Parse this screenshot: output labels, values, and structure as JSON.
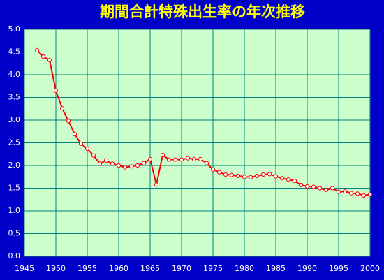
{
  "chart_data": {
    "type": "line",
    "title": "期間合計特殊出生率の年次推移",
    "x": [
      1947,
      1948,
      1949,
      1950,
      1951,
      1952,
      1953,
      1954,
      1955,
      1956,
      1957,
      1958,
      1959,
      1960,
      1961,
      1962,
      1963,
      1964,
      1965,
      1966,
      1967,
      1968,
      1969,
      1970,
      1971,
      1972,
      1973,
      1974,
      1975,
      1976,
      1977,
      1978,
      1979,
      1980,
      1981,
      1982,
      1983,
      1984,
      1985,
      1986,
      1987,
      1988,
      1989,
      1990,
      1991,
      1992,
      1993,
      1994,
      1995,
      1996,
      1997,
      1998,
      1999,
      2000
    ],
    "series": [
      {
        "color": "#ff0000",
        "values": [
          4.54,
          4.4,
          4.32,
          3.65,
          3.26,
          2.98,
          2.69,
          2.48,
          2.37,
          2.22,
          2.04,
          2.11,
          2.04,
          2.0,
          1.96,
          1.98,
          2.0,
          2.05,
          2.14,
          1.58,
          2.23,
          2.13,
          2.13,
          2.13,
          2.16,
          2.14,
          2.14,
          2.05,
          1.91,
          1.85,
          1.8,
          1.79,
          1.77,
          1.75,
          1.74,
          1.77,
          1.8,
          1.81,
          1.76,
          1.72,
          1.69,
          1.66,
          1.57,
          1.54,
          1.53,
          1.5,
          1.46,
          1.5,
          1.42,
          1.43,
          1.39,
          1.38,
          1.34,
          1.36
        ]
      }
    ],
    "xlim": [
      1945,
      2000
    ],
    "xticks": [
      1945,
      1950,
      1955,
      1960,
      1965,
      1970,
      1975,
      1980,
      1985,
      1990,
      1995,
      2000
    ],
    "ylim": [
      0,
      5
    ],
    "yticks": [
      {
        "value": 0,
        "label": "0.0"
      },
      0.5,
      {
        "value": 1,
        "label": "1.0"
      },
      1.5,
      {
        "value": 2,
        "label": "2.0"
      },
      2.5,
      {
        "value": 3,
        "label": "3.0"
      },
      3.5,
      {
        "value": 4,
        "label": "4.0"
      },
      4.5,
      {
        "value": 5,
        "label": "5.0"
      }
    ],
    "grid": true
  }
}
